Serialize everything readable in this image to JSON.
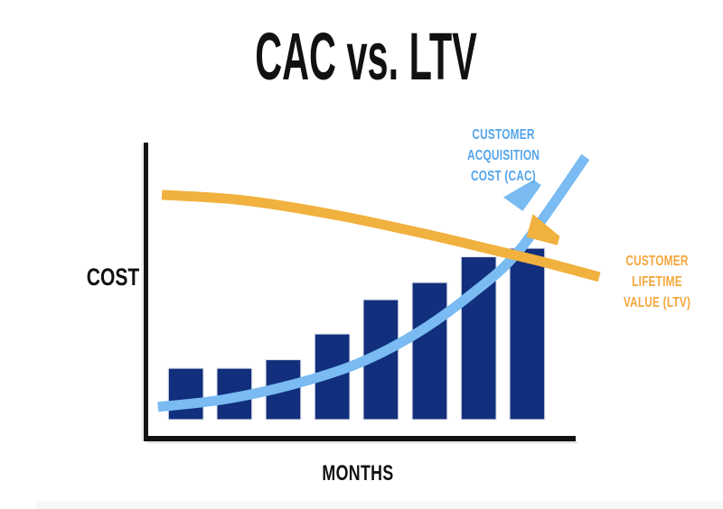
{
  "title": "CAC vs. LTV",
  "axis_labels": {
    "y": "COST",
    "x": "MONTHS"
  },
  "series_labels": {
    "cac": {
      "lines": [
        "CUSTOMER",
        "ACQUISITION",
        "COST (CAC)"
      ],
      "color": "#55A4EA"
    },
    "ltv": {
      "lines": [
        "CUSTOMER",
        "LIFETIME",
        "VALUE (LTV)"
      ],
      "color": "#F4A63C"
    }
  },
  "colors": {
    "title": "#111111",
    "axis": "#121212",
    "axis_text": "#111111",
    "axis_shadow": "#c9c9c9",
    "bars": "#112F7C",
    "bar_outline": "#E3E6F0",
    "cac_line": "#79BBF2",
    "ltv_line": "#F1B13E",
    "page_edge": "#f6f7f9"
  },
  "chart_data": {
    "type": "bar",
    "subtype": "bar-with-trend-arrows",
    "title": "CAC vs. LTV",
    "xlabel": "MONTHS",
    "ylabel": "COST",
    "x_axis": {
      "label": "MONTHS",
      "tick_labels": [],
      "range_units": [
        0,
        100
      ]
    },
    "y_axis": {
      "label": "COST",
      "tick_labels": [],
      "range_units": [
        0,
        160
      ]
    },
    "grid": false,
    "legend": "arrow-end labels (CAC upper right, LTV right)",
    "bars": {
      "name": "monthly cost bars",
      "count": 8,
      "x_units": [
        9.2,
        20.5,
        31.9,
        43.3,
        54.6,
        66,
        77.4,
        88.7
      ],
      "values": [
        30,
        30,
        35,
        50,
        70,
        80,
        95,
        100
      ],
      "bar_width_units": 8.2
    },
    "series": [
      {
        "name": "CUSTOMER ACQUISITION COST (CAC)",
        "type": "line",
        "color_key": "cac",
        "trend": "increasing",
        "arrow": "end",
        "points": [
          [
            2.7,
            7.4
          ],
          [
            17.5,
            11.6
          ],
          [
            33.3,
            20
          ],
          [
            49.1,
            32.6
          ],
          [
            62.7,
            50
          ],
          [
            75.4,
            72.6
          ],
          [
            86.9,
            98.9
          ],
          [
            102.3,
            153.2
          ]
        ]
      },
      {
        "name": "CUSTOMER LIFETIME VALUE (LTV)",
        "type": "line",
        "color_key": "ltv",
        "trend": "decreasing",
        "arrow": "end",
        "points": [
          [
            3.6,
            131.1
          ],
          [
            22.7,
            127.9
          ],
          [
            43.8,
            119.5
          ],
          [
            64.8,
            108.4
          ],
          [
            81.7,
            98.4
          ],
          [
            92.2,
            92.1
          ],
          [
            105.5,
            83.2
          ]
        ]
      }
    ]
  }
}
